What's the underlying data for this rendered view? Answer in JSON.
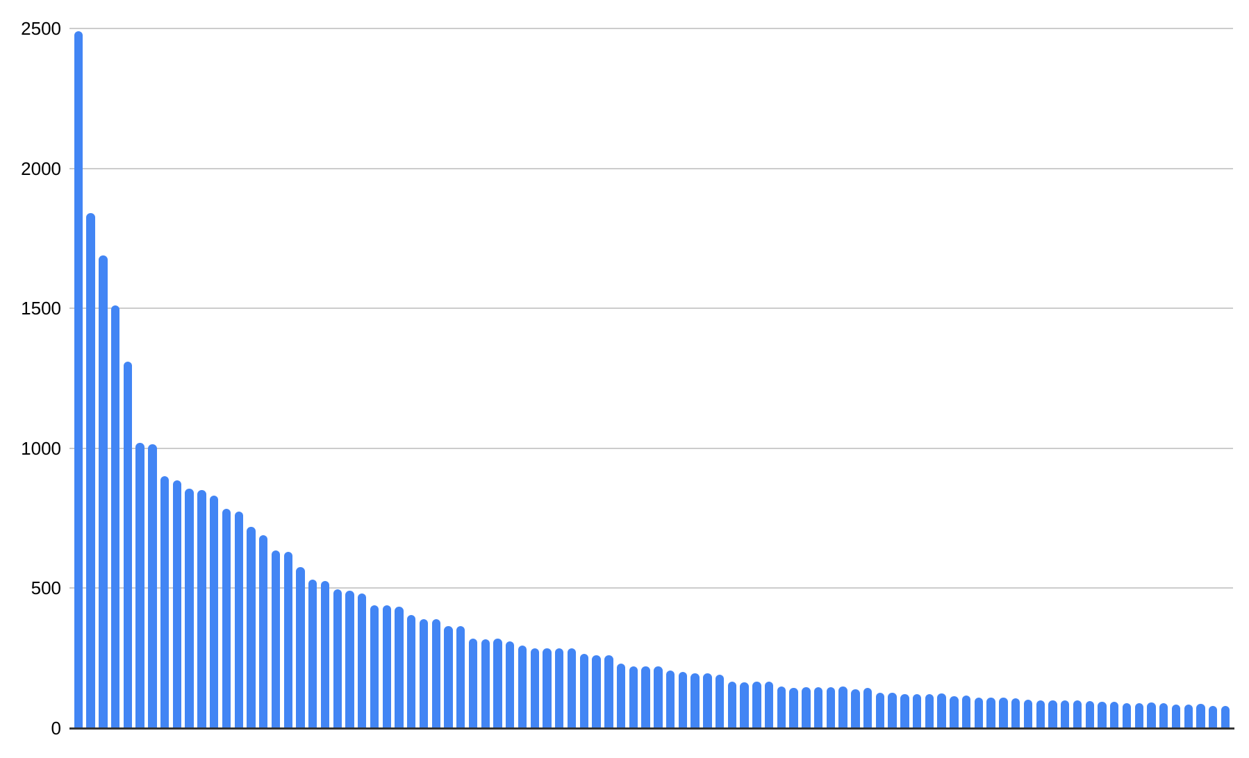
{
  "chart_data": {
    "type": "bar",
    "title": "",
    "xlabel": "",
    "ylabel": "",
    "ylim": [
      0,
      2500
    ],
    "yticks": [
      0,
      500,
      1000,
      1500,
      2000,
      2500
    ],
    "grid": true,
    "legend": false,
    "x_tick_labels_visible": false,
    "series_name": "",
    "values": [
      2490,
      1840,
      1690,
      1510,
      1310,
      1020,
      1015,
      900,
      885,
      855,
      850,
      830,
      785,
      775,
      720,
      690,
      635,
      630,
      575,
      530,
      525,
      495,
      490,
      480,
      440,
      440,
      435,
      405,
      390,
      390,
      365,
      365,
      320,
      318,
      320,
      310,
      295,
      285,
      285,
      285,
      285,
      265,
      260,
      260,
      230,
      220,
      220,
      222,
      205,
      200,
      195,
      197,
      190,
      165,
      163,
      165,
      167,
      150,
      145,
      146,
      146,
      146,
      148,
      140,
      144,
      126,
      126,
      121,
      122,
      122,
      123,
      113,
      117,
      108,
      110,
      108,
      107,
      101,
      100,
      100,
      100,
      100,
      98,
      95,
      95,
      90,
      90,
      91,
      90,
      84,
      84,
      86,
      79,
      79
    ]
  },
  "colors": {
    "background": "#ffffff",
    "bar": "#4285f4",
    "gridline": "#cccccc",
    "axis_line": "#333333",
    "tick_label": "#000000"
  }
}
